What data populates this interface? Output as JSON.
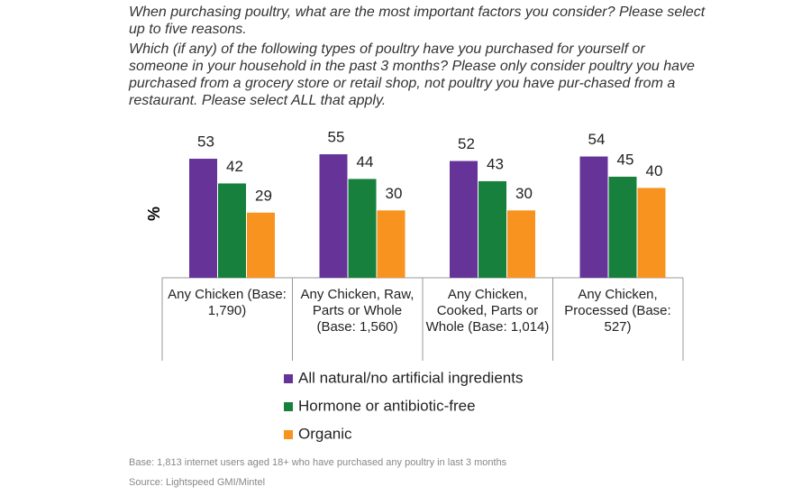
{
  "chart_data": {
    "type": "bar",
    "title": "When purchasing poultry, what are the most important factors you consider? Please select up to five reasons.",
    "subtitle": "Which (if any) of the following types of poultry have you purchased for yourself or someone in your household in the past 3 months? Please only consider poultry you have purchased from a grocery store or retail shop, not poultry you have pur-chased from a restaurant. Please select ALL that apply.",
    "y_label": "%",
    "categories": [
      "Any Chicken (Base: 1,790)",
      "Any Chicken, Raw, Parts or Whole (Base: 1,560)",
      "Any Chicken, Cooked, Parts or Whole (Base: 1,014)",
      "Any Chicken, Processed (Base: 527)"
    ],
    "series": [
      {
        "name": "All natural/no artificial ingredients",
        "color": "#663399",
        "values": [
          53,
          55,
          52,
          54
        ]
      },
      {
        "name": "Hormone or antibiotic-free",
        "color": "#17803d",
        "values": [
          42,
          44,
          43,
          45
        ]
      },
      {
        "name": "Organic",
        "color": "#f7931e",
        "values": [
          29,
          30,
          30,
          40
        ]
      }
    ],
    "notes": [
      "Base: 1,813 internet users aged 18+ who have purchased any poultry in last 3 months",
      "Source: Lightspeed GMI/Mintel"
    ]
  }
}
